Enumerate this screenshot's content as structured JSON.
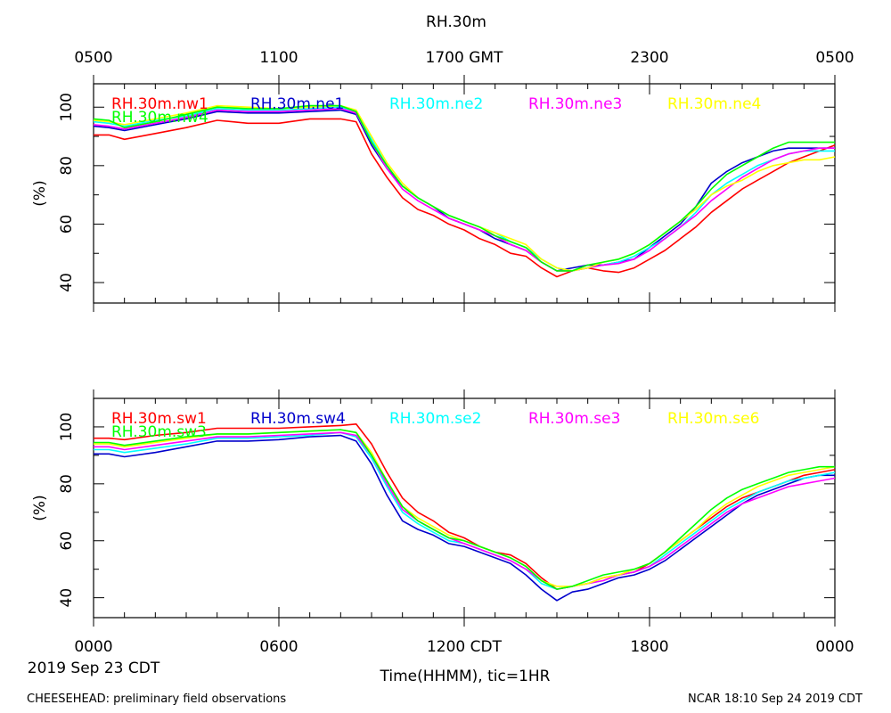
{
  "title": "RH.30m",
  "top_axis": {
    "tick_labels": [
      "0500",
      "1100",
      "1700 GMT",
      "2300",
      "0500"
    ]
  },
  "bottom_axis": {
    "tick_labels": [
      "0000",
      "0600",
      "1200 CDT",
      "1800",
      "0000"
    ],
    "date_label": "2019 Sep 23 CDT",
    "xlabel": "Time(HHMM), tic=1HR"
  },
  "footer": {
    "left": "CHEESEHEAD: preliminary field observations",
    "right": "NCAR 18:10 Sep 24 2019 CDT"
  },
  "chart_data": [
    {
      "type": "line",
      "xlabel": "",
      "ylabel": "(%)",
      "x_unit": "hour (CDT)",
      "xlim": [
        0,
        24
      ],
      "ylim": [
        33,
        108
      ],
      "yticks": [
        40,
        60,
        80,
        100
      ],
      "x": [
        0,
        0.5,
        1,
        2,
        3,
        4,
        5,
        6,
        7,
        8,
        8.5,
        9,
        9.5,
        10,
        10.5,
        11,
        11.5,
        12,
        12.5,
        13,
        13.5,
        14,
        14.5,
        15,
        15.5,
        16,
        16.5,
        17,
        17.5,
        18,
        18.5,
        19,
        19.5,
        20,
        20.5,
        21,
        21.5,
        22,
        22.5,
        23,
        23.5,
        24
      ],
      "series": [
        {
          "name": "RH.30m.nw1",
          "color": "#ff0000",
          "values": [
            90.5,
            90.5,
            89,
            91,
            93,
            95.5,
            94.5,
            94.5,
            96,
            96,
            95,
            84,
            76,
            69,
            65,
            63,
            60,
            58,
            55,
            53,
            50,
            49,
            45,
            42,
            44,
            45,
            44,
            43.5,
            45,
            48,
            51,
            55,
            59,
            64,
            68,
            72,
            75,
            78,
            81,
            83,
            85,
            87
          ]
        },
        {
          "name": "RH.30m.ne1",
          "color": "#0000cc",
          "values": [
            93.5,
            93,
            92,
            94,
            96,
            98.5,
            98,
            98,
            98.5,
            99,
            97.5,
            87,
            79,
            73,
            69,
            66,
            62,
            60,
            58,
            55,
            53,
            51,
            47,
            44,
            45,
            46,
            46,
            47,
            48,
            52,
            56,
            60,
            66,
            74,
            78,
            81,
            83,
            85,
            86,
            86,
            86,
            86
          ]
        },
        {
          "name": "RH.30m.ne2",
          "color": "#00ffff",
          "values": [
            95,
            94.5,
            93.5,
            95.5,
            97,
            99.5,
            99,
            99,
            99.5,
            100,
            98.5,
            89,
            80,
            73,
            69,
            66,
            63,
            61,
            59,
            57,
            54,
            52,
            48,
            45,
            44,
            45,
            46,
            47,
            49,
            52,
            55,
            59,
            64,
            70,
            74,
            77,
            80,
            82,
            84,
            85,
            85,
            85
          ]
        },
        {
          "name": "RH.30m.ne3",
          "color": "#ff00ff",
          "values": [
            94,
            93.5,
            92.5,
            94.5,
            96.5,
            99,
            98.5,
            98.5,
            99,
            99.5,
            98,
            88,
            79,
            72,
            68,
            65,
            62,
            60,
            58,
            56,
            53,
            51,
            47,
            44,
            44,
            45,
            46,
            46.5,
            48,
            51,
            55,
            59,
            63,
            68,
            72,
            76,
            79,
            82,
            84,
            85,
            86,
            86
          ]
        },
        {
          "name": "RH.30m.ne4",
          "color": "#ffff00",
          "values": [
            95.5,
            95,
            94,
            96,
            98,
            100.5,
            100,
            99.5,
            100,
            100.5,
            99,
            90,
            81,
            74,
            69,
            66,
            63,
            61,
            59,
            57,
            55,
            53,
            48,
            45,
            44,
            45,
            47,
            48,
            50,
            53,
            57,
            61,
            65,
            70,
            73,
            75,
            78,
            80,
            81,
            82,
            82,
            83
          ]
        },
        {
          "name": "RH.30m.nw4",
          "color": "#00ff00",
          "values": [
            96,
            95.5,
            93,
            95,
            97.5,
            100,
            99.5,
            99.5,
            100.5,
            100.5,
            98.5,
            88,
            80,
            73,
            69,
            66,
            63,
            61,
            59,
            56,
            54,
            52,
            47,
            44,
            44,
            46,
            47,
            48,
            50,
            53,
            57,
            61,
            66,
            72,
            77,
            80,
            83,
            86,
            88,
            88,
            88,
            88
          ]
        }
      ]
    },
    {
      "type": "line",
      "xlabel": "Time(HHMM), tic=1HR",
      "ylabel": "(%)",
      "x_unit": "hour (CDT)",
      "xlim": [
        0,
        24
      ],
      "ylim": [
        33,
        110
      ],
      "yticks": [
        40,
        60,
        80,
        100
      ],
      "x": [
        0,
        0.5,
        1,
        2,
        3,
        4,
        5,
        6,
        7,
        8,
        8.5,
        9,
        9.5,
        10,
        10.5,
        11,
        11.5,
        12,
        12.5,
        13,
        13.5,
        14,
        14.5,
        15,
        15.5,
        16,
        16.5,
        17,
        17.5,
        18,
        18.5,
        19,
        19.5,
        20,
        20.5,
        21,
        21.5,
        22,
        22.5,
        23,
        23.5,
        24
      ],
      "series": [
        {
          "name": "RH.30m.sw1",
          "color": "#ff0000",
          "values": [
            96,
            96,
            95.5,
            97,
            98,
            99.5,
            99.5,
            99.5,
            100,
            100.5,
            101,
            94,
            84,
            75,
            70,
            67,
            63,
            61,
            58,
            56,
            55,
            52,
            47,
            43,
            44,
            45,
            47,
            48,
            49,
            52,
            56,
            60,
            64,
            68,
            72,
            75,
            77,
            79,
            81,
            83,
            84,
            85
          ]
        },
        {
          "name": "RH.30m.sw4",
          "color": "#0000cc",
          "values": [
            90.5,
            90.5,
            89.5,
            91,
            93,
            95,
            95,
            95.5,
            96.5,
            97,
            95,
            87,
            76,
            67,
            64,
            62,
            59,
            58,
            56,
            54,
            52,
            48,
            43,
            39,
            42,
            43,
            45,
            47,
            48,
            50,
            53,
            57,
            61,
            65,
            69,
            73,
            76,
            78,
            80,
            82,
            83,
            83
          ]
        },
        {
          "name": "RH.30m.se2",
          "color": "#00ffff",
          "values": [
            92,
            92,
            91,
            92.5,
            94,
            96,
            96,
            96.5,
            97,
            98,
            96.5,
            89,
            79,
            70,
            66,
            63,
            60,
            59,
            57,
            55,
            53,
            50,
            45,
            43,
            44,
            45,
            46,
            48,
            49,
            51,
            55,
            59,
            63,
            67,
            71,
            74,
            77,
            79,
            81,
            82,
            83,
            84
          ]
        },
        {
          "name": "RH.30m.se3",
          "color": "#ff00ff",
          "values": [
            93,
            93,
            92,
            93.5,
            95,
            96.5,
            96.5,
            97,
            97.5,
            98,
            97,
            90,
            80,
            71,
            67,
            64,
            61,
            59,
            57,
            55,
            53,
            50,
            46,
            43,
            44,
            45,
            46,
            48,
            49,
            51,
            54,
            58,
            62,
            66,
            70,
            73,
            75,
            77,
            79,
            80,
            81,
            82
          ]
        },
        {
          "name": "RH.30m.se6",
          "color": "#ffff00",
          "values": [
            94,
            94,
            93,
            94.5,
            96,
            97.5,
            97.5,
            98,
            98.5,
            99,
            98,
            91,
            81,
            72,
            68,
            65,
            62,
            60,
            58,
            56,
            54,
            51,
            46,
            44,
            44,
            45,
            47,
            48,
            50,
            52,
            56,
            60,
            64,
            69,
            73,
            76,
            79,
            81,
            83,
            84,
            85,
            86
          ]
        },
        {
          "name": "RH.30m.sw3",
          "color": "#00ff00",
          "values": [
            94.5,
            94.5,
            93.5,
            95,
            96.5,
            97.5,
            97.5,
            98,
            98.5,
            99,
            98,
            90,
            81,
            72,
            67,
            64,
            61,
            60,
            58,
            56,
            54,
            51,
            46,
            43,
            44,
            46,
            48,
            49,
            50,
            52,
            56,
            61,
            66,
            71,
            75,
            78,
            80,
            82,
            84,
            85,
            86,
            86
          ]
        }
      ]
    }
  ]
}
